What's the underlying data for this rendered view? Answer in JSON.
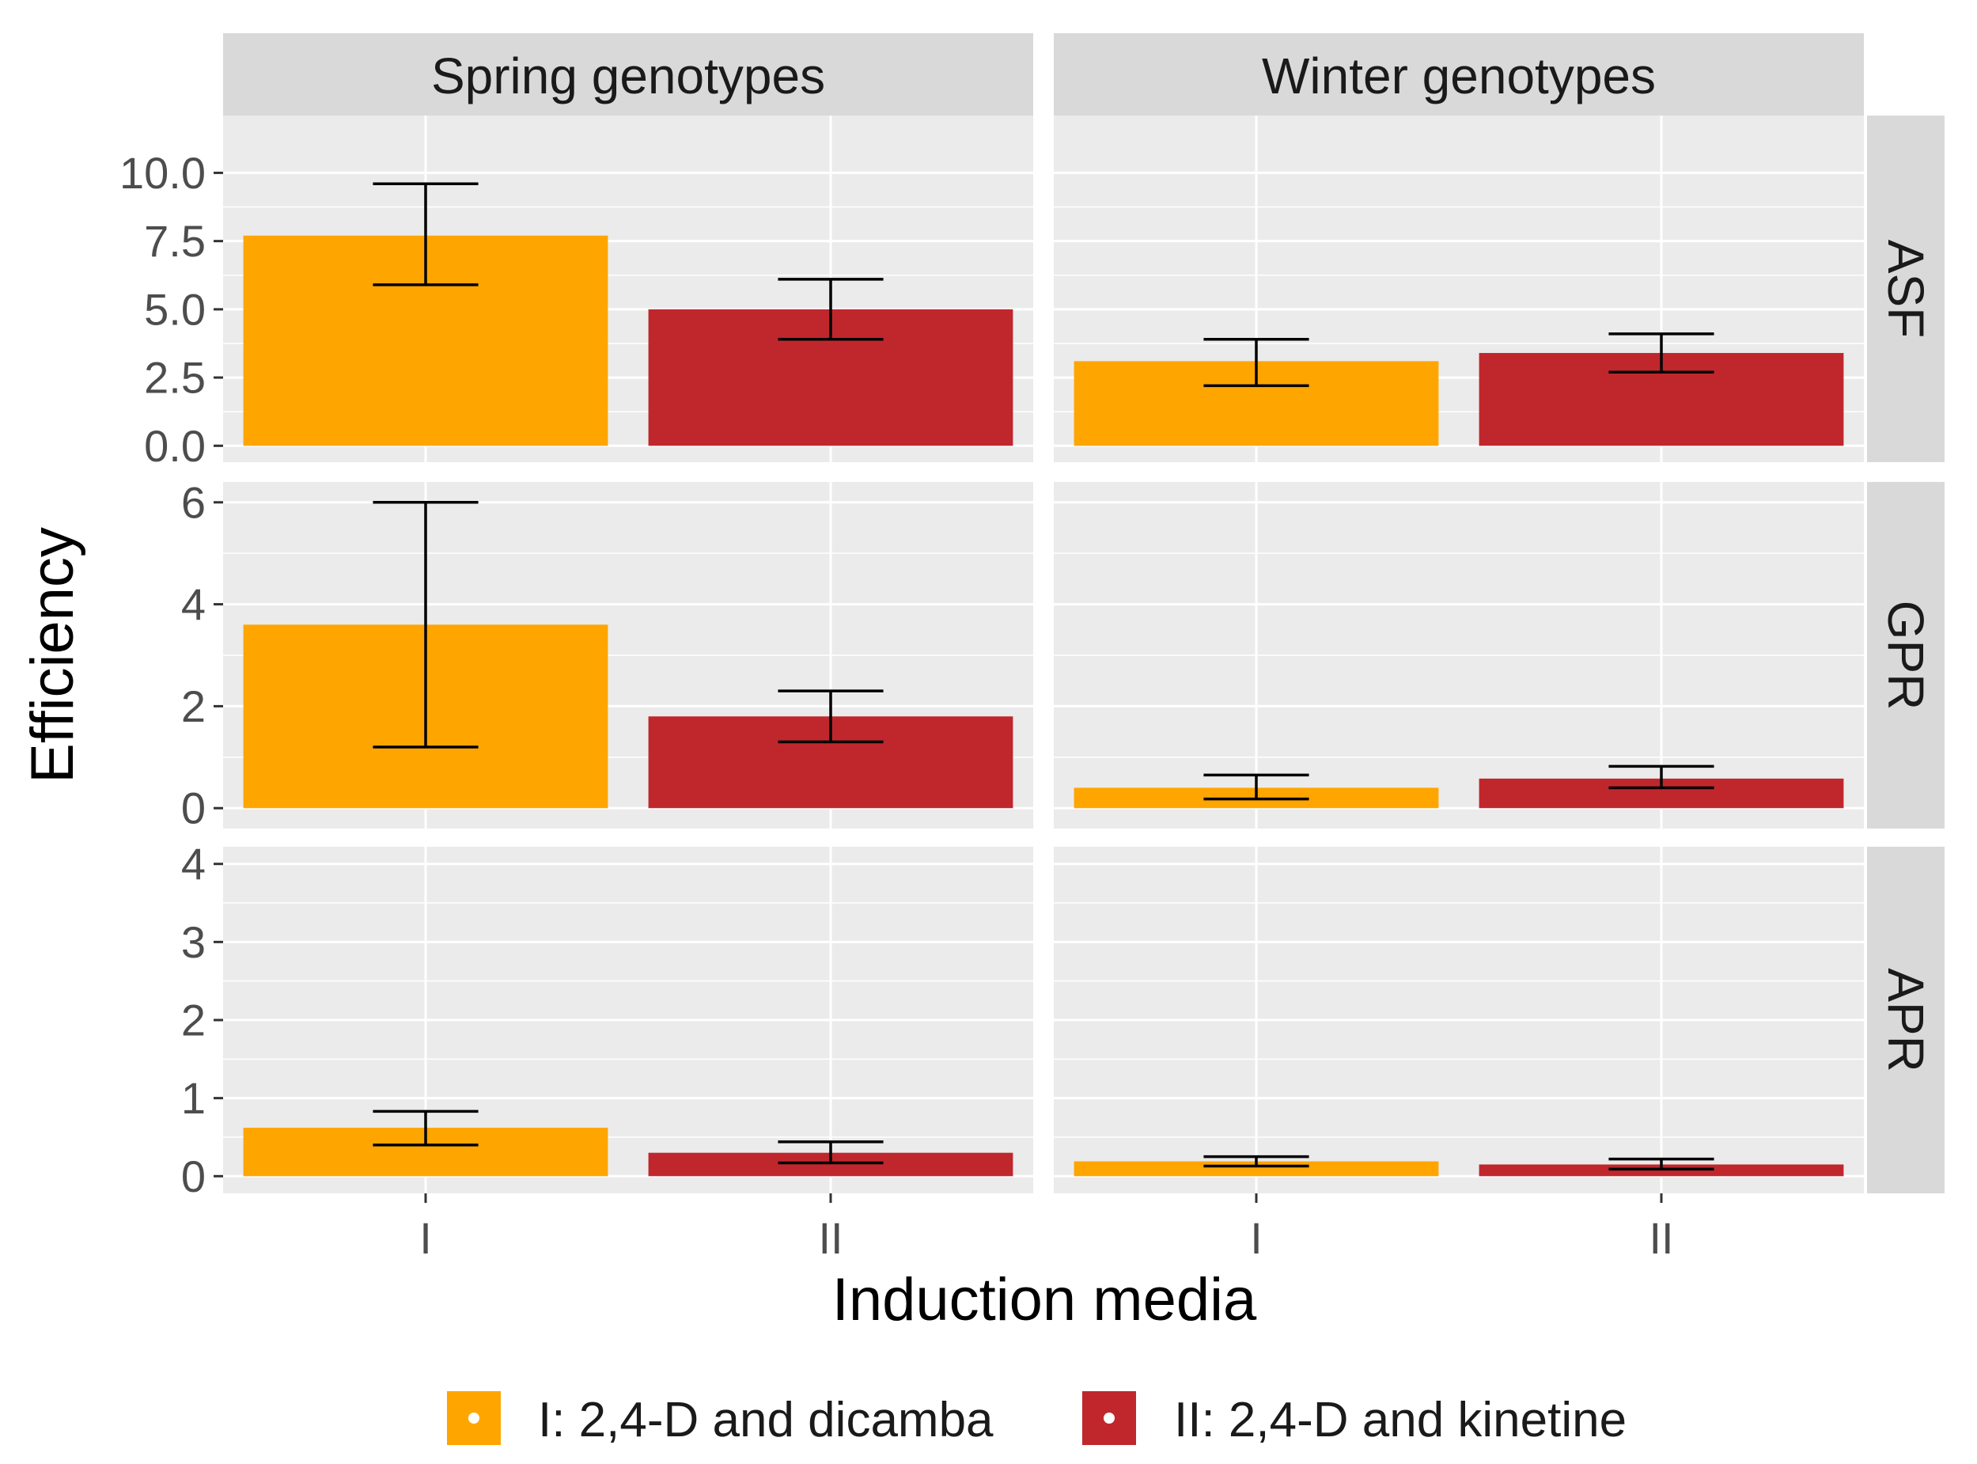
{
  "chart_data": {
    "type": "bar",
    "facet_columns": [
      "Spring genotypes",
      "Winter genotypes"
    ],
    "facet_rows": [
      "ASF",
      "GPR",
      "APR"
    ],
    "categories": [
      "I",
      "II"
    ],
    "xlabel": "Induction media",
    "ylabel": "Efficiency",
    "legend": {
      "position": "bottom",
      "entries": [
        {
          "key": "I",
          "label": "I: 2,4-D and dicamba",
          "color": "#FFA500"
        },
        {
          "key": "II",
          "label": "II: 2,4-D and kinetine",
          "color": "#C0272D"
        }
      ]
    },
    "rows": [
      {
        "name": "ASF",
        "ylim": [
          -0.6,
          12.1
        ],
        "yticks": [
          0.0,
          2.5,
          5.0,
          7.5,
          10.0
        ],
        "ytick_labels": [
          "0.0",
          "2.5",
          "5.0",
          "7.5",
          "10.0"
        ],
        "panels": [
          {
            "facet": "Spring genotypes",
            "values": [
              7.7,
              5.0
            ],
            "err_low": [
              5.9,
              3.9
            ],
            "err_high": [
              9.6,
              6.1
            ]
          },
          {
            "facet": "Winter genotypes",
            "values": [
              3.1,
              3.4
            ],
            "err_low": [
              2.2,
              2.7
            ],
            "err_high": [
              3.9,
              4.1
            ]
          }
        ]
      },
      {
        "name": "GPR",
        "ylim": [
          -0.4,
          6.4
        ],
        "yticks": [
          0,
          2,
          4,
          6
        ],
        "ytick_labels": [
          "0",
          "2",
          "4",
          "6"
        ],
        "panels": [
          {
            "facet": "Spring genotypes",
            "values": [
              3.6,
              1.8
            ],
            "err_low": [
              1.2,
              1.3
            ],
            "err_high": [
              6.0,
              2.3
            ]
          },
          {
            "facet": "Winter genotypes",
            "values": [
              0.4,
              0.58
            ],
            "err_low": [
              0.18,
              0.4
            ],
            "err_high": [
              0.65,
              0.82
            ]
          }
        ]
      },
      {
        "name": "APR",
        "ylim": [
          -0.22,
          4.22
        ],
        "yticks": [
          0,
          1,
          2,
          3,
          4
        ],
        "ytick_labels": [
          "0",
          "1",
          "2",
          "3",
          "4"
        ],
        "panels": [
          {
            "facet": "Spring genotypes",
            "values": [
              0.62,
              0.3
            ],
            "err_low": [
              0.4,
              0.17
            ],
            "err_high": [
              0.83,
              0.44
            ]
          },
          {
            "facet": "Winter genotypes",
            "values": [
              0.19,
              0.15
            ],
            "err_low": [
              0.13,
              0.09
            ],
            "err_high": [
              0.25,
              0.22
            ]
          }
        ]
      }
    ]
  }
}
